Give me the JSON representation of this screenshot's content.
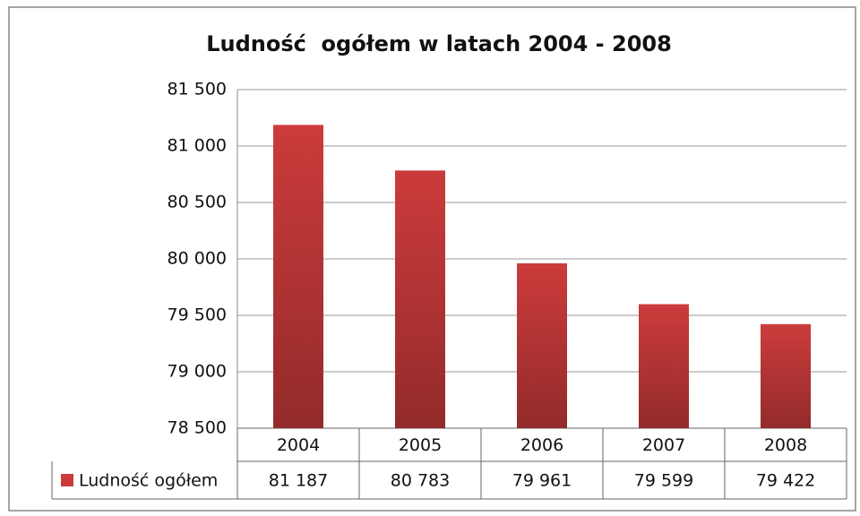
{
  "chart_data": {
    "type": "bar",
    "title": "Ludność  ogółem w latach 2004 - 2008",
    "categories": [
      "2004",
      "2005",
      "2006",
      "2007",
      "2008"
    ],
    "series": [
      {
        "name": "Ludność ogółem",
        "color": "#cc3b3b",
        "values": [
          81187,
          80783,
          79961,
          79599,
          79422
        ],
        "value_labels": [
          "81 187",
          "80 783",
          "79 961",
          "79 599",
          "79 422"
        ]
      }
    ],
    "ylim": [
      78500,
      81500
    ],
    "yticks": [
      {
        "value": 78500,
        "label": "78 500"
      },
      {
        "value": 79000,
        "label": "79 000"
      },
      {
        "value": 79500,
        "label": "79 500"
      },
      {
        "value": 80000,
        "label": "80 000"
      },
      {
        "value": 80500,
        "label": "80 500"
      },
      {
        "value": 81000,
        "label": "81 000"
      },
      {
        "value": 81500,
        "label": "81 500"
      }
    ],
    "grid": true
  }
}
